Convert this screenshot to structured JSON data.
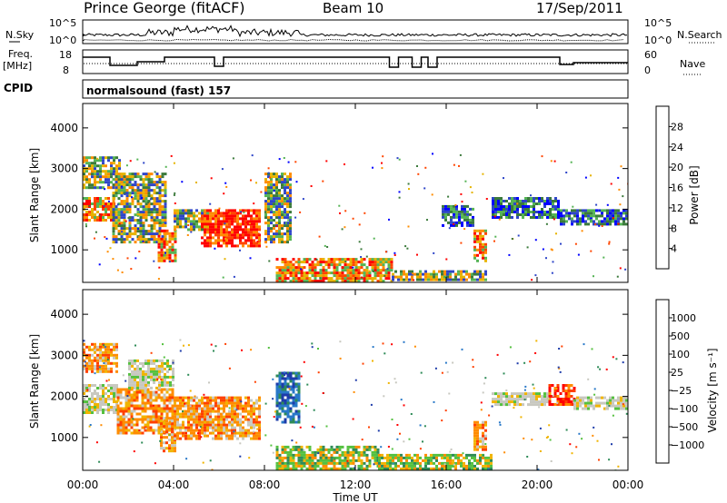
{
  "header": {
    "station": "Prince George (fitACF)",
    "beam": "Beam 10",
    "date": "17/Sep/2011"
  },
  "noise_panel": {
    "left_label": "N.Sky",
    "left_ticks": [
      "10^5",
      "10^0"
    ],
    "right_label": "N.Search",
    "right_ticks": [
      "10^5",
      "10^0"
    ]
  },
  "freq_panel": {
    "left_label_1": "Freq.",
    "left_label_2": "[MHz]",
    "left_ticks": [
      "18",
      "8"
    ],
    "right_label": "Nave",
    "right_ticks": [
      "60",
      "0"
    ]
  },
  "cpid": {
    "label": "CPID",
    "text": "normalsound (fast) 157"
  },
  "chart_data": [
    {
      "type": "heatmap",
      "title": "Power",
      "xlabel": "",
      "ylabel": "Slant Range [km]",
      "x_ticks": [
        "00:00",
        "04:00",
        "08:00",
        "12:00",
        "16:00",
        "20:00",
        "00:00"
      ],
      "y_ticks": [
        "1000",
        "2000",
        "3000",
        "4000"
      ],
      "ylim": [
        200,
        4600
      ],
      "colorbar_label": "Power [dB]",
      "colorbar_ticks": [
        "4",
        "8",
        "12",
        "16",
        "20",
        "24",
        "28"
      ],
      "colorbar_colors": [
        "#0000ff",
        "#2e45c8",
        "#3b7a3b",
        "#55b455",
        "#e6b400",
        "#ff8c00",
        "#ff4500",
        "#ff0000"
      ],
      "regions": [
        {
          "t0": 0.0,
          "t1": 1.4,
          "r0": 1700,
          "r1": 2300,
          "level": "high"
        },
        {
          "t0": 0.0,
          "t1": 1.6,
          "r0": 2500,
          "r1": 3300,
          "level": "mid"
        },
        {
          "t0": 1.3,
          "t1": 3.6,
          "r0": 1200,
          "r1": 2900,
          "level": "mid"
        },
        {
          "t0": 3.3,
          "t1": 4.1,
          "r0": 700,
          "r1": 1500,
          "level": "high"
        },
        {
          "t0": 4.0,
          "t1": 5.5,
          "r0": 1500,
          "r1": 2000,
          "level": "mid"
        },
        {
          "t0": 5.2,
          "t1": 7.8,
          "r0": 1100,
          "r1": 2000,
          "level": "max"
        },
        {
          "t0": 8.0,
          "t1": 9.2,
          "r0": 1200,
          "r1": 2900,
          "level": "mid"
        },
        {
          "t0": 8.5,
          "t1": 13.6,
          "r0": 250,
          "r1": 800,
          "level": "high"
        },
        {
          "t0": 13.6,
          "t1": 17.8,
          "r0": 250,
          "r1": 500,
          "level": "mid"
        },
        {
          "t0": 15.8,
          "t1": 17.2,
          "r0": 1600,
          "r1": 2100,
          "level": "low"
        },
        {
          "t0": 17.2,
          "t1": 17.8,
          "r0": 700,
          "r1": 1500,
          "level": "high"
        },
        {
          "t0": 18.0,
          "t1": 21.0,
          "r0": 1800,
          "r1": 2300,
          "level": "low"
        },
        {
          "t0": 21.0,
          "t1": 24.0,
          "r0": 1600,
          "r1": 2000,
          "level": "low"
        }
      ]
    },
    {
      "type": "heatmap",
      "title": "Velocity",
      "xlabel": "Time UT",
      "ylabel": "Slant Range [km]",
      "x_ticks": [
        "00:00",
        "04:00",
        "08:00",
        "12:00",
        "16:00",
        "20:00",
        "00:00"
      ],
      "y_ticks": [
        "1000",
        "2000",
        "3000",
        "4000"
      ],
      "ylim": [
        200,
        4600
      ],
      "colorbar_label": "Velocity [m s⁻¹]",
      "colorbar_ticks": [
        "1000",
        "500",
        "100",
        "25",
        "−25",
        "−100",
        "−500",
        "−1000"
      ],
      "colorbar_colors": [
        "#1e3caa",
        "#2878c8",
        "#2e8b57",
        "#55c040",
        "#c8c8c0",
        "#f0b400",
        "#ff8c00",
        "#ff4000",
        "#ff0000"
      ],
      "regions": [
        {
          "t0": 0.0,
          "t1": 1.5,
          "r0": 1600,
          "r1": 2300,
          "level": "gray"
        },
        {
          "t0": 0.0,
          "t1": 1.5,
          "r0": 2600,
          "r1": 3300,
          "level": "orange"
        },
        {
          "t0": 1.5,
          "t1": 4.0,
          "r0": 1100,
          "r1": 2200,
          "level": "orange"
        },
        {
          "t0": 3.4,
          "t1": 4.1,
          "r0": 700,
          "r1": 1500,
          "level": "orange"
        },
        {
          "t0": 4.0,
          "t1": 7.8,
          "r0": 1000,
          "r1": 2000,
          "level": "orange"
        },
        {
          "t0": 2.0,
          "t1": 4.0,
          "r0": 2200,
          "r1": 2900,
          "level": "gray"
        },
        {
          "t0": 8.5,
          "t1": 9.5,
          "r0": 1400,
          "r1": 2600,
          "level": "blue"
        },
        {
          "t0": 8.5,
          "t1": 13.0,
          "r0": 250,
          "r1": 800,
          "level": "green"
        },
        {
          "t0": 13.0,
          "t1": 18.0,
          "r0": 250,
          "r1": 600,
          "level": "green"
        },
        {
          "t0": 17.2,
          "t1": 17.8,
          "r0": 700,
          "r1": 1400,
          "level": "orange"
        },
        {
          "t0": 18.0,
          "t1": 20.5,
          "r0": 1800,
          "r1": 2100,
          "level": "gray"
        },
        {
          "t0": 20.5,
          "t1": 21.6,
          "r0": 1800,
          "r1": 2300,
          "level": "red"
        },
        {
          "t0": 21.6,
          "t1": 24.0,
          "r0": 1700,
          "r1": 2000,
          "level": "gray"
        }
      ]
    }
  ]
}
